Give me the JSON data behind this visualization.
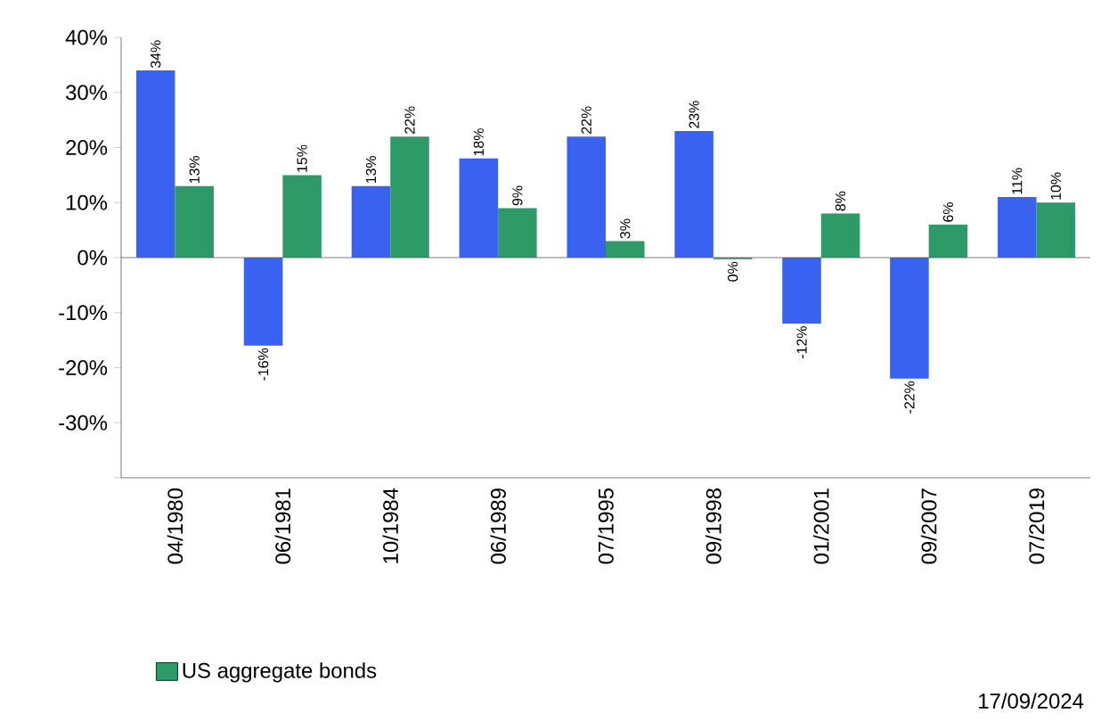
{
  "chart_data": {
    "type": "bar",
    "categories": [
      "04/1980",
      "06/1981",
      "10/1984",
      "06/1989",
      "07/1995",
      "09/1998",
      "01/2001",
      "09/2007",
      "07/2019"
    ],
    "series": [
      {
        "color": "#3a62f0",
        "values": [
          34,
          -16,
          13,
          18,
          22,
          23,
          -12,
          -22,
          11
        ],
        "value_labels": [
          "34%",
          "-16%",
          "13%",
          "18%",
          "22%",
          "23%",
          "-12%",
          "-22%",
          "11%"
        ]
      },
      {
        "name": "US aggregate bonds",
        "color": "#2e9a68",
        "values": [
          13,
          15,
          22,
          9,
          3,
          -0.3,
          8,
          6,
          10
        ],
        "value_labels": [
          "13%",
          "15%",
          "22%",
          "9%",
          "3%",
          "0%",
          "8%",
          "6%",
          "10%"
        ]
      }
    ],
    "ylim": [
      -40,
      40
    ],
    "yticks": [
      {
        "value": -40,
        "label": null
      },
      {
        "value": -30,
        "label": "-30%"
      },
      {
        "value": -20,
        "label": "-20%"
      },
      {
        "value": -10,
        "label": "-10%"
      },
      {
        "value": 0,
        "label": "0%"
      },
      {
        "value": 10,
        "label": "10%"
      },
      {
        "value": 20,
        "label": "20%"
      },
      {
        "value": 30,
        "label": "30%"
      },
      {
        "value": 40,
        "label": "40%"
      }
    ],
    "legend": "bottom",
    "annotations": [
      "17/09/2024"
    ]
  }
}
